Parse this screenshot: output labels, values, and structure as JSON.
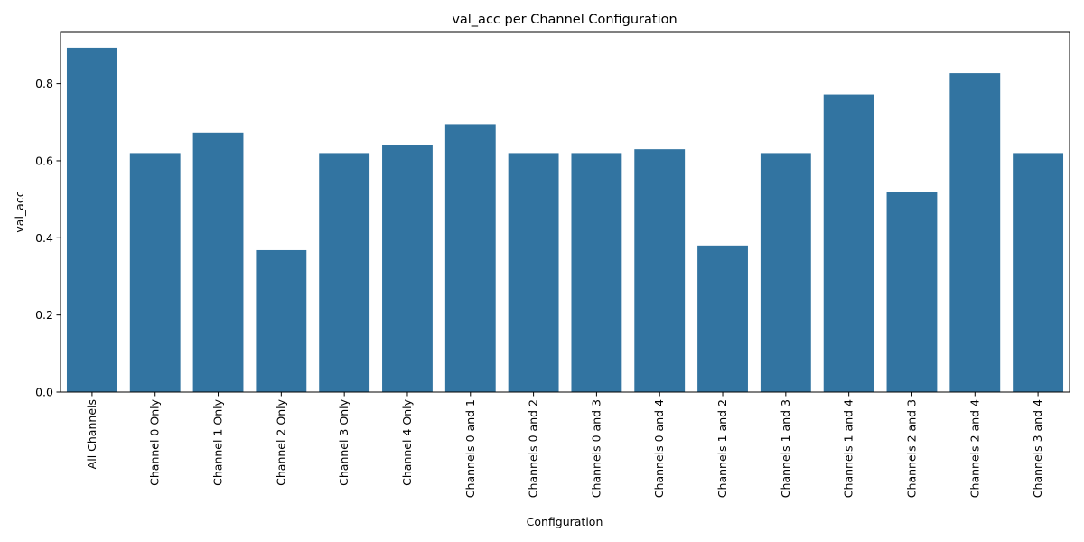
{
  "chart_data": {
    "type": "bar",
    "title": "val_acc per Channel Configuration",
    "xlabel": "Configuration",
    "ylabel": "val_acc",
    "categories": [
      "All Channels",
      "Channel 0 Only",
      "Channel 1 Only",
      "Channel 2 Only",
      "Channel 3 Only",
      "Channel 4 Only",
      "Channels 0 and 1",
      "Channels 0 and 2",
      "Channels 0 and 3",
      "Channels 0 and 4",
      "Channels 1 and 2",
      "Channels 1 and 3",
      "Channels 1 and 4",
      "Channels 2 and 3",
      "Channels 2 and 4",
      "Channels 3 and 4"
    ],
    "values": [
      0.893,
      0.62,
      0.673,
      0.368,
      0.62,
      0.64,
      0.695,
      0.62,
      0.62,
      0.63,
      0.38,
      0.62,
      0.772,
      0.52,
      0.827,
      0.62
    ],
    "ylim": [
      0,
      0.935
    ],
    "yticks": [
      0.0,
      0.2,
      0.4,
      0.6,
      0.8
    ],
    "ytick_labels": [
      "0.0",
      "0.2",
      "0.4",
      "0.6",
      "0.8"
    ],
    "bar_color": "#3274a1",
    "grid": false,
    "legend": "none"
  }
}
